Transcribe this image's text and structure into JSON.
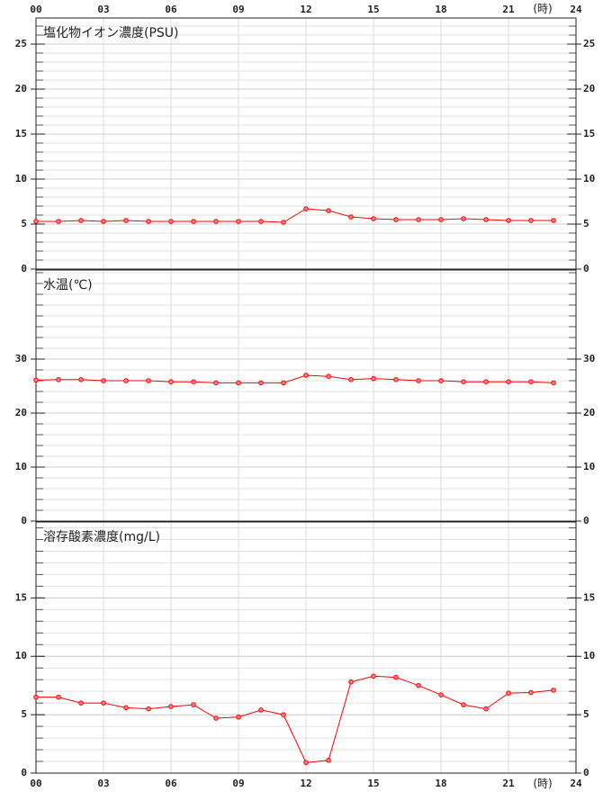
{
  "chart_data": [
    {
      "type": "line",
      "title": "塩化物イオン濃度(PSU)",
      "x_label": "(時)",
      "x": [
        0,
        1,
        2,
        3,
        4,
        5,
        6,
        7,
        8,
        9,
        10,
        11,
        12,
        13,
        14,
        15,
        16,
        17,
        18,
        19,
        20,
        21,
        22,
        23
      ],
      "values": [
        5.3,
        5.3,
        5.4,
        5.3,
        5.4,
        5.3,
        5.3,
        5.3,
        5.3,
        5.3,
        5.3,
        5.2,
        6.7,
        6.5,
        5.8,
        5.6,
        5.5,
        5.5,
        5.5,
        5.6,
        5.5,
        5.4,
        5.4,
        5.4
      ],
      "color": "#ff0000",
      "xlim": [
        0,
        24
      ],
      "xticks": [
        {
          "value": 0,
          "label": "00"
        },
        {
          "value": 3,
          "label": "03"
        },
        {
          "value": 6,
          "label": "06"
        },
        {
          "value": 9,
          "label": "09"
        },
        12,
        15,
        18,
        21,
        24
      ],
      "ylim": [
        0,
        27.9
      ],
      "yticks": [
        0,
        5,
        10,
        15,
        20,
        25
      ],
      "grid": true
    },
    {
      "type": "line",
      "title": "水温(℃)",
      "x": [
        0,
        1,
        2,
        3,
        4,
        5,
        6,
        7,
        8,
        9,
        10,
        11,
        12,
        13,
        14,
        15,
        16,
        17,
        18,
        19,
        20,
        21,
        22,
        23
      ],
      "values": [
        26.1,
        26.2,
        26.2,
        26,
        26,
        26,
        25.8,
        25.8,
        25.6,
        25.6,
        25.6,
        25.6,
        27,
        26.8,
        26.2,
        26.4,
        26.2,
        26,
        26,
        25.8,
        25.8,
        25.8,
        25.8,
        25.6
      ],
      "color": "#ff0000",
      "xlim": [
        0,
        24
      ],
      "xticks": [
        {
          "value": 0,
          "label": "00"
        },
        {
          "value": 3,
          "label": "03"
        },
        {
          "value": 6,
          "label": "06"
        },
        {
          "value": 9,
          "label": "09"
        },
        12,
        15,
        18,
        21,
        24
      ],
      "ylim": [
        0,
        46.5
      ],
      "yticks": [
        0,
        10,
        20,
        30
      ],
      "grid": true
    },
    {
      "type": "line",
      "title": "溶存酸素濃度(mg/L)",
      "x_label": "(時)",
      "x": [
        0,
        1,
        2,
        3,
        4,
        5,
        6,
        7,
        8,
        9,
        10,
        11,
        12,
        13,
        14,
        15,
        16,
        17,
        18,
        19,
        20,
        21,
        22,
        23
      ],
      "values": [
        6.5,
        6.5,
        6.0,
        6.0,
        5.6,
        5.5,
        5.7,
        5.85,
        4.7,
        4.8,
        5.4,
        5.0,
        0.9,
        1.1,
        7.8,
        8.3,
        8.2,
        7.5,
        6.7,
        5.85,
        5.5,
        6.85,
        6.9,
        7.1
      ],
      "color": "#ff0000",
      "xlim": [
        0,
        24
      ],
      "xticks": [
        {
          "value": 0,
          "label": "00"
        },
        {
          "value": 3,
          "label": "03"
        },
        {
          "value": 6,
          "label": "06"
        },
        {
          "value": 9,
          "label": "09"
        },
        12,
        15,
        18,
        21,
        24
      ],
      "ylim": [
        0,
        21.5
      ],
      "yticks": [
        0,
        5,
        10,
        15
      ],
      "grid": true
    }
  ]
}
